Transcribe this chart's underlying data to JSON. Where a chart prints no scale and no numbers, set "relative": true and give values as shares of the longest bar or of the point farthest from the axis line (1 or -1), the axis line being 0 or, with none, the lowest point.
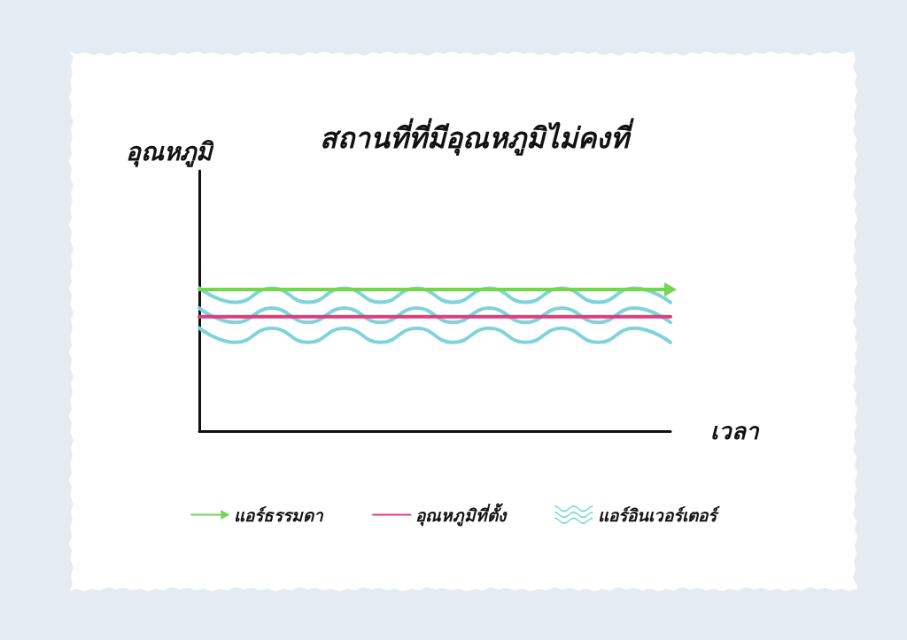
{
  "chart_data": {
    "type": "line",
    "title": "สถานที่ที่มีอุณหภูมิไม่คงที่",
    "xlabel": "เวลา",
    "ylabel": "อุณหภูมิ",
    "relative": true,
    "categories": [
      null,
      null,
      null,
      null,
      null,
      null,
      null,
      null,
      null,
      null,
      null,
      null,
      null,
      null
    ],
    "series": [
      {
        "name": "แอร์ธรรมดา",
        "color": "#77d353",
        "values": [
          0.99,
          0.99,
          0.99,
          0.99,
          0.99,
          0.99,
          0.99,
          0.99,
          0.99,
          0.99,
          0.99,
          0.99,
          0.99,
          0.99
        ]
      },
      {
        "name": "อุณหภูมิที่ตั้ง",
        "color": "#dd3d7e",
        "values": [
          0.8,
          0.8,
          0.8,
          0.8,
          0.8,
          0.8,
          0.8,
          0.8,
          0.8,
          0.8,
          0.8,
          0.8,
          0.8,
          0.8
        ]
      },
      {
        "name": "แอร์อินเวอร์เตอร์",
        "color": "#7fd3da",
        "values": [
          1,
          0.9,
          1,
          0.9,
          1,
          0.9,
          1,
          0.9,
          1,
          0.9,
          1,
          0.9,
          1,
          0.9
        ]
      },
      {
        "color": "#7fd3da",
        "values": [
          0.86,
          0.76,
          0.86,
          0.76,
          0.86,
          0.76,
          0.86,
          0.76,
          0.86,
          0.76,
          0.86,
          0.76,
          0.86,
          0.76
        ]
      },
      {
        "color": "#7fd3da",
        "values": [
          0.72,
          0.62,
          0.72,
          0.62,
          0.72,
          0.62,
          0.72,
          0.62,
          0.72,
          0.62,
          0.72,
          0.62,
          0.72,
          0.62
        ]
      }
    ],
    "legend": "bottom",
    "marker": "none",
    "line_style": "solid",
    "tick_labels": false
  }
}
